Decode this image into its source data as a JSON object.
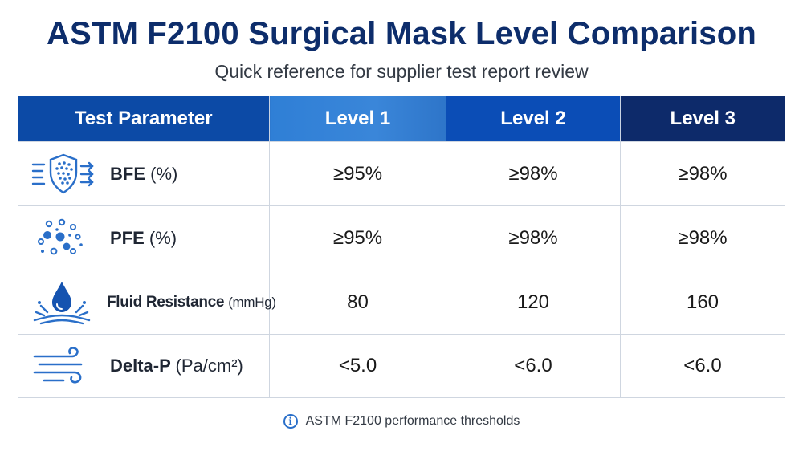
{
  "title": "ASTM F2100 Surgical Mask Level Comparison",
  "subtitle": "Quick reference for supplier test report review",
  "table": {
    "headers": {
      "parameter": "Test Parameter",
      "level1": "Level 1",
      "level2": "Level 2",
      "level3": "Level 3"
    },
    "rows": [
      {
        "icon": "shield-filter-icon",
        "name": "BFE",
        "unit": "(%)",
        "level1": "≥95%",
        "level2": "≥98%",
        "level3": "≥98%"
      },
      {
        "icon": "particles-icon",
        "name": "PFE",
        "unit": "(%)",
        "level1": "≥95%",
        "level2": "≥98%",
        "level3": "≥98%"
      },
      {
        "icon": "fluid-drop-icon",
        "name": "Fluid Resistance",
        "unit": "(mmHg)",
        "level1": "80",
        "level2": "120",
        "level3": "160"
      },
      {
        "icon": "airflow-icon",
        "name": "Delta-P",
        "unit": "(Pa/cm²)",
        "level1": "<5.0",
        "level2": "<6.0",
        "level3": "<6.0"
      }
    ]
  },
  "footer": {
    "icon": "info-icon",
    "text": "ASTM F2100 performance thresholds"
  },
  "colors": {
    "title": "#0d2d6b",
    "header_param": "#0c4aa6",
    "header_level1": "#3a86d9",
    "header_level2": "#0b4db6",
    "header_level3": "#0d2a6a",
    "icon_blue": "#2a6fc9"
  }
}
